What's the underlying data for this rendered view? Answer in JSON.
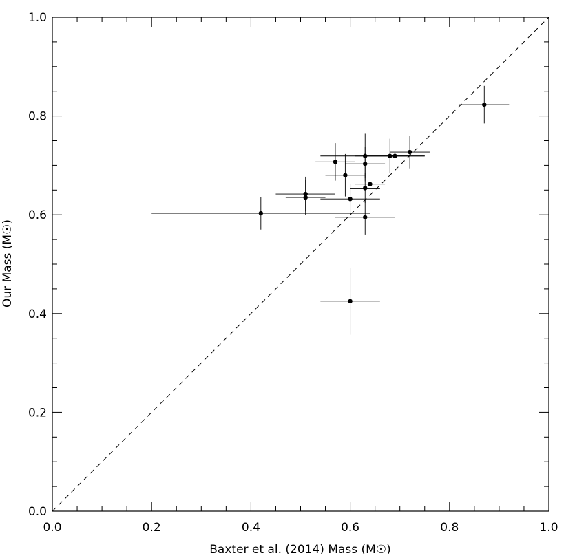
{
  "chart_data": {
    "type": "scatter",
    "title": "",
    "xlabel": "Baxter et al. (2014) Mass (M☉)",
    "ylabel": "Our Mass (M☉)",
    "xlim": [
      0.0,
      1.0
    ],
    "ylim": [
      0.0,
      1.0
    ],
    "x_ticks": [
      "0.0",
      "0.2",
      "0.4",
      "0.6",
      "0.8",
      "1.0"
    ],
    "y_ticks": [
      "0.0",
      "0.2",
      "0.4",
      "0.6",
      "0.8",
      "1.0"
    ],
    "grid": false,
    "reference_line": {
      "style": "dashed",
      "from": [
        0.0,
        0.0
      ],
      "to": [
        1.0,
        1.0
      ]
    },
    "points": [
      {
        "x": 0.87,
        "y": 0.823,
        "xerr": 0.05,
        "yerr": 0.038
      },
      {
        "x": 0.72,
        "y": 0.727,
        "xerr": 0.04,
        "yerr": 0.033
      },
      {
        "x": 0.69,
        "y": 0.719,
        "xerr": 0.06,
        "yerr": 0.03
      },
      {
        "x": 0.68,
        "y": 0.719,
        "xerr": 0.07,
        "yerr": 0.035
      },
      {
        "x": 0.63,
        "y": 0.719,
        "xerr": 0.09,
        "yerr": 0.045
      },
      {
        "x": 0.57,
        "y": 0.707,
        "xerr": 0.04,
        "yerr": 0.038
      },
      {
        "x": 0.63,
        "y": 0.703,
        "xerr": 0.04,
        "yerr": 0.035
      },
      {
        "x": 0.59,
        "y": 0.68,
        "xerr": 0.04,
        "yerr": 0.043
      },
      {
        "x": 0.64,
        "y": 0.662,
        "xerr": 0.03,
        "yerr": 0.033
      },
      {
        "x": 0.63,
        "y": 0.654,
        "xerr": 0.03,
        "yerr": 0.03
      },
      {
        "x": 0.51,
        "y": 0.642,
        "xerr": 0.06,
        "yerr": 0.035
      },
      {
        "x": 0.51,
        "y": 0.635,
        "xerr": 0.04,
        "yerr": 0.035
      },
      {
        "x": 0.6,
        "y": 0.632,
        "xerr": 0.06,
        "yerr": 0.03
      },
      {
        "x": 0.42,
        "y": 0.603,
        "xerr": 0.22,
        "yerr": 0.033
      },
      {
        "x": 0.63,
        "y": 0.595,
        "xerr": 0.06,
        "yerr": 0.035
      },
      {
        "x": 0.6,
        "y": 0.425,
        "xerr": 0.06,
        "yerr": 0.068
      }
    ]
  }
}
